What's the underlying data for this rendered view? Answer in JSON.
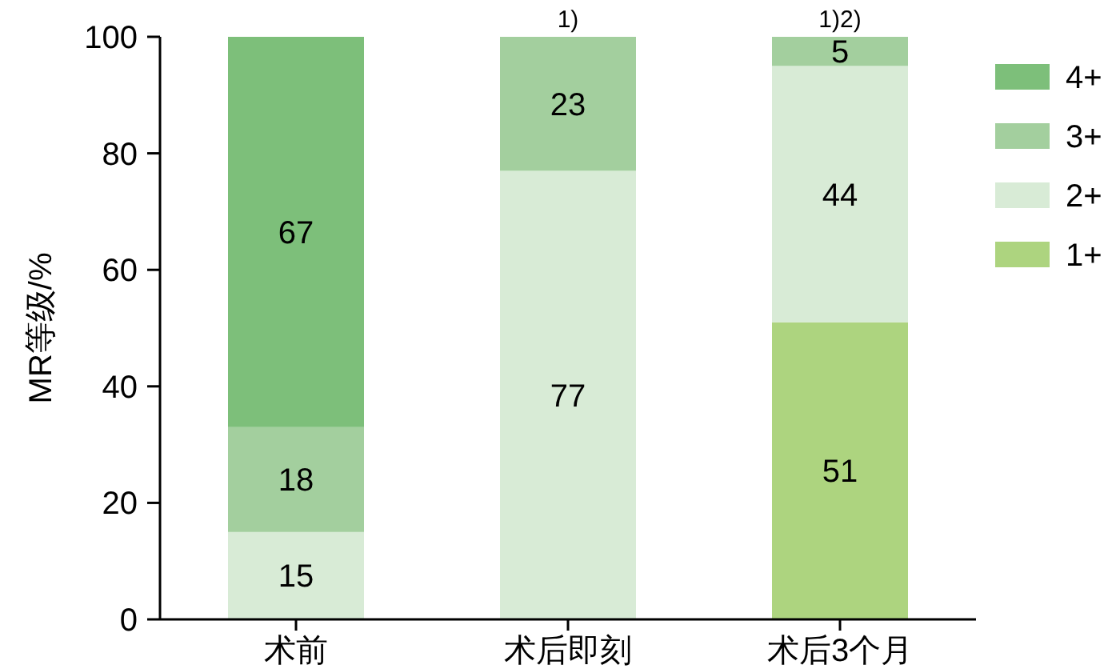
{
  "chart_data": {
    "type": "bar",
    "stacked": true,
    "ylabel": "MR等级/%",
    "categories": [
      "术前",
      "术后即刻",
      "术后3个月"
    ],
    "series": [
      {
        "name": "1+",
        "color": "#add47f",
        "values": [
          null,
          null,
          51
        ]
      },
      {
        "name": "2+",
        "color": "#d8ebd6",
        "values": [
          15,
          77,
          44
        ]
      },
      {
        "name": "3+",
        "color": "#a3cf9e",
        "values": [
          18,
          23,
          5
        ]
      },
      {
        "name": "4+",
        "color": "#7dbf7a",
        "values": [
          67,
          null,
          null
        ]
      }
    ],
    "ylim": [
      0,
      100
    ],
    "yticks": [
      0,
      20,
      40,
      60,
      80,
      100
    ],
    "data_labels": true,
    "legend": "right",
    "grid": false,
    "annotations": [
      {
        "text": "1)",
        "x": "术后即刻",
        "y": 100
      },
      {
        "text": "1)2)",
        "x": "术后3个月",
        "y": 100
      }
    ]
  }
}
